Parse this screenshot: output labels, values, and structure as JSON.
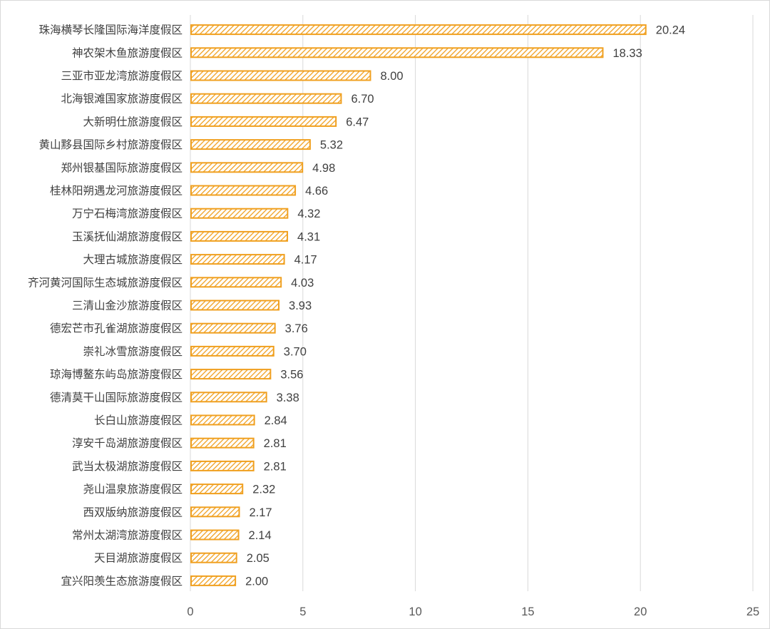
{
  "chart_data": {
    "type": "bar",
    "orientation": "horizontal",
    "title": "",
    "xlabel": "",
    "ylabel": "",
    "categories": [
      "珠海横琴长隆国际海洋度假区",
      "神农架木鱼旅游度假区",
      "三亚市亚龙湾旅游度假区",
      "北海银滩国家旅游度假区",
      "大新明仕旅游度假区",
      "黄山黟县国际乡村旅游度假区",
      "郑州银基国际旅游度假区",
      "桂林阳朔遇龙河旅游度假区",
      "万宁石梅湾旅游度假区",
      "玉溪抚仙湖旅游度假区",
      "大理古城旅游度假区",
      "齐河黄河国际生态城旅游度假区",
      "三清山金沙旅游度假区",
      "德宏芒市孔雀湖旅游度假区",
      "崇礼冰雪旅游度假区",
      "琼海博鳌东屿岛旅游度假区",
      "德清莫干山国际旅游度假区",
      "长白山旅游度假区",
      "淳安千岛湖旅游度假区",
      "武当太极湖旅游度假区",
      "尧山温泉旅游度假区",
      "西双版纳旅游度假区",
      "常州太湖湾旅游度假区",
      "天目湖旅游度假区",
      "宜兴阳羡生态旅游度假区"
    ],
    "values": [
      20.24,
      18.33,
      8.0,
      6.7,
      6.47,
      5.32,
      4.98,
      4.66,
      4.32,
      4.31,
      4.17,
      4.03,
      3.93,
      3.76,
      3.7,
      3.56,
      3.38,
      2.84,
      2.81,
      2.81,
      2.32,
      2.17,
      2.14,
      2.05,
      2.0
    ],
    "value_labels": [
      "20.24",
      "18.33",
      "8.00",
      "6.70",
      "6.47",
      "5.32",
      "4.98",
      "4.66",
      "4.32",
      "4.31",
      "4.17",
      "4.03",
      "3.93",
      "3.76",
      "3.70",
      "3.56",
      "3.38",
      "2.84",
      "2.81",
      "2.81",
      "2.32",
      "2.17",
      "2.14",
      "2.05",
      "2.00"
    ],
    "xlim": [
      0,
      25
    ],
    "x_ticks": [
      "0",
      "5",
      "10",
      "15",
      "20",
      "25"
    ],
    "grid": "vertical",
    "legend": "none",
    "colors": {
      "bar": "#f0a020",
      "hatch_bg": "#ffffff",
      "grid": "#d9d9d9",
      "text": "#404040"
    }
  }
}
